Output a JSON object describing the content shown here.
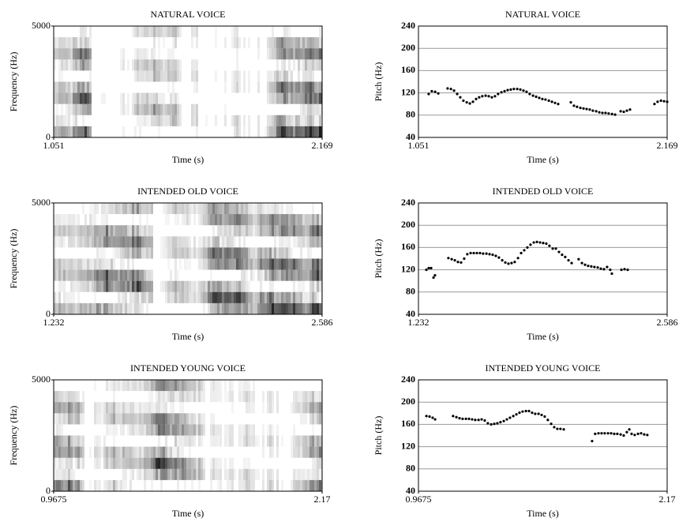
{
  "chart_data": [
    {
      "type": "spectrogram",
      "title": "NATURAL VOICE",
      "xlabel": "Time (s)",
      "ylabel": "Frequency (Hz)",
      "xlim": [
        1.051,
        2.169
      ],
      "xticks": [
        1.051,
        2.169
      ],
      "ylim": [
        0,
        5000
      ],
      "yticks": [
        0,
        5000
      ]
    },
    {
      "type": "scatter",
      "title": "NATURAL VOICE",
      "xlabel": "Time (s)",
      "ylabel": "Pitch (Hz)",
      "xlim": [
        1.051,
        2.169
      ],
      "xticks": [
        1.051,
        2.169
      ],
      "ylim": [
        40,
        240
      ],
      "yticks": [
        40,
        80,
        120,
        160,
        200,
        240
      ],
      "grid": true,
      "color": "#000000",
      "x": [
        1.097,
        1.111,
        1.126,
        1.14,
        1.182,
        1.197,
        1.211,
        1.225,
        1.239,
        1.253,
        1.268,
        1.282,
        1.296,
        1.31,
        1.324,
        1.338,
        1.353,
        1.367,
        1.381,
        1.395,
        1.409,
        1.424,
        1.438,
        1.452,
        1.466,
        1.48,
        1.495,
        1.509,
        1.523,
        1.537,
        1.551,
        1.566,
        1.58,
        1.594,
        1.608,
        1.622,
        1.637,
        1.651,
        1.665,
        1.679,
        1.736,
        1.75,
        1.764,
        1.779,
        1.793,
        1.807,
        1.821,
        1.835,
        1.85,
        1.864,
        1.878,
        1.892,
        1.906,
        1.921,
        1.935,
        1.96,
        1.974,
        1.988,
        2.002,
        2.112,
        2.126,
        2.141,
        2.155,
        2.169
      ],
      "values": [
        118,
        123,
        122,
        119,
        128,
        127,
        124,
        118,
        112,
        106,
        103,
        101,
        104,
        109,
        112,
        114,
        115,
        114,
        112,
        114,
        118,
        121,
        123,
        125,
        126,
        127,
        127,
        126,
        124,
        122,
        118,
        115,
        113,
        111,
        109,
        108,
        106,
        104,
        102,
        100,
        103,
        97,
        95,
        93,
        92,
        91,
        90,
        88,
        87,
        85,
        84,
        84,
        83,
        82,
        81,
        87,
        86,
        88,
        90,
        100,
        104,
        106,
        105,
        104
      ]
    },
    {
      "type": "spectrogram",
      "title": "INTENDED OLD VOICE",
      "xlabel": "Time (s)",
      "ylabel": "Frequency (Hz)",
      "xlim": [
        1.232,
        2.586
      ],
      "xticks": [
        1.232,
        2.586
      ],
      "ylim": [
        0,
        5000
      ],
      "yticks": [
        0,
        5000
      ]
    },
    {
      "type": "scatter",
      "title": "INTENDED OLD VOICE",
      "xlabel": "Time (s)",
      "ylabel": "Pitch (Hz)",
      "xlim": [
        1.232,
        2.586
      ],
      "xticks": [
        1.232,
        2.586
      ],
      "ylim": [
        40,
        240
      ],
      "yticks": [
        40,
        80,
        120,
        160,
        200,
        240
      ],
      "grid": true,
      "color": "#000000",
      "x": [
        1.275,
        1.288,
        1.301,
        1.314,
        1.322,
        1.395,
        1.413,
        1.43,
        1.447,
        1.464,
        1.481,
        1.498,
        1.516,
        1.533,
        1.55,
        1.567,
        1.584,
        1.602,
        1.619,
        1.636,
        1.653,
        1.67,
        1.688,
        1.705,
        1.722,
        1.739,
        1.756,
        1.774,
        1.791,
        1.808,
        1.825,
        1.842,
        1.86,
        1.877,
        1.894,
        1.911,
        1.928,
        1.945,
        1.963,
        1.98,
        1.997,
        2.014,
        2.031,
        2.049,
        2.066,
        2.104,
        2.122,
        2.139,
        2.156,
        2.173,
        2.19,
        2.208,
        2.225,
        2.242,
        2.259,
        2.276,
        2.285,
        2.337,
        2.354,
        2.371
      ],
      "values": [
        120,
        123,
        123,
        106,
        110,
        141,
        139,
        137,
        134,
        133,
        140,
        148,
        150,
        150,
        150,
        150,
        149,
        149,
        148,
        147,
        145,
        142,
        137,
        133,
        131,
        132,
        134,
        141,
        150,
        155,
        160,
        165,
        169,
        170,
        169,
        168,
        167,
        163,
        158,
        158,
        152,
        147,
        143,
        137,
        132,
        139,
        132,
        129,
        127,
        126,
        125,
        124,
        122,
        121,
        125,
        120,
        113,
        120,
        121,
        120
      ]
    },
    {
      "type": "spectrogram",
      "title": "INTENDED YOUNG VOICE",
      "xlabel": "Time (s)",
      "ylabel": "Frequency (Hz)",
      "xlim": [
        0.9675,
        2.17
      ],
      "xticks": [
        0.9675,
        2.17
      ],
      "ylim": [
        0,
        5000
      ],
      "yticks": [
        0,
        5000
      ]
    },
    {
      "type": "scatter",
      "title": "INTENDED YOUNG VOICE",
      "xlabel": "Time (s)",
      "ylabel": "Pitch (Hz)",
      "xlim": [
        0.9675,
        2.17
      ],
      "xticks": [
        0.9675,
        2.17
      ],
      "ylim": [
        40,
        240
      ],
      "yticks": [
        40,
        80,
        120,
        160,
        200,
        240
      ],
      "grid": true,
      "color": "#000000",
      "x": [
        1.006,
        1.021,
        1.036,
        1.048,
        1.135,
        1.151,
        1.166,
        1.181,
        1.197,
        1.212,
        1.227,
        1.242,
        1.258,
        1.273,
        1.288,
        1.303,
        1.319,
        1.334,
        1.349,
        1.364,
        1.38,
        1.395,
        1.41,
        1.426,
        1.441,
        1.456,
        1.471,
        1.487,
        1.502,
        1.517,
        1.532,
        1.548,
        1.563,
        1.578,
        1.593,
        1.609,
        1.624,
        1.639,
        1.654,
        1.67,
        1.807,
        1.822,
        1.838,
        1.853,
        1.868,
        1.884,
        1.899,
        1.914,
        1.929,
        1.945,
        1.96,
        1.975,
        1.987,
        1.998,
        2.013,
        2.029,
        2.044,
        2.059,
        2.074
      ],
      "values": [
        175,
        174,
        172,
        169,
        175,
        173,
        171,
        170,
        170,
        170,
        169,
        168,
        168,
        169,
        167,
        162,
        160,
        161,
        162,
        164,
        166,
        169,
        172,
        175,
        178,
        181,
        183,
        184,
        184,
        181,
        179,
        179,
        177,
        174,
        168,
        161,
        155,
        152,
        152,
        151,
        130,
        143,
        144,
        144,
        144,
        144,
        144,
        143,
        143,
        142,
        140,
        146,
        151,
        143,
        141,
        143,
        144,
        142,
        141
      ]
    }
  ]
}
